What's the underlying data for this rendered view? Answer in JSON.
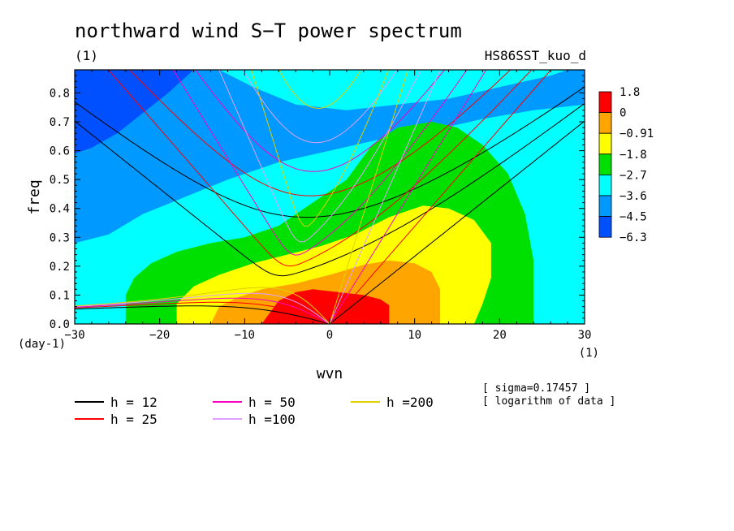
{
  "chart_data": {
    "type": "heatmap",
    "title": "northward wind S−T power spectrum",
    "subtitle_left": "(1)",
    "dataset_label": "HS86SST_kuo_d",
    "xlabel": "wvn",
    "ylabel": "freq",
    "x_unit": "(1)",
    "y_unit": "(day-1)",
    "xlim": [
      -30,
      30
    ],
    "ylim": [
      0,
      0.88
    ],
    "x_ticks": [
      -30,
      -20,
      -10,
      0,
      10,
      20,
      30
    ],
    "x_tick_labels": [
      "−30",
      "−20",
      "−10",
      "0",
      "10",
      "20",
      "30"
    ],
    "y_ticks": [
      0.0,
      0.1,
      0.2,
      0.3,
      0.4,
      0.5,
      0.6,
      0.7,
      0.8
    ],
    "y_tick_labels": [
      "0.0",
      "0.1",
      "0.2",
      "0.3",
      "0.4",
      "0.5",
      "0.6",
      "0.7",
      "0.8"
    ],
    "colorbar": {
      "labels": [
        "1.8",
        "0",
        "−0.91",
        "−1.8",
        "−2.7",
        "−3.6",
        "−4.5",
        "−6.3"
      ],
      "colors": [
        "#ff0000",
        "#ffa500",
        "#ffff00",
        "#00e000",
        "#00ffff",
        "#0099ff",
        "#0050ff"
      ]
    },
    "contour_regions": [
      {
        "level_color": "#00ffff",
        "points": [
          [
            -30,
            0.28
          ],
          [
            -26,
            0.31
          ],
          [
            -22,
            0.38
          ],
          [
            -17,
            0.44
          ],
          [
            -12,
            0.5
          ],
          [
            -6,
            0.56
          ],
          [
            0,
            0.6
          ],
          [
            6,
            0.64
          ],
          [
            12,
            0.67
          ],
          [
            18,
            0.71
          ],
          [
            24,
            0.74
          ],
          [
            30,
            0.76
          ],
          [
            30,
            0
          ],
          [
            -30,
            0
          ]
        ]
      },
      {
        "level_color": "#00e000",
        "points": [
          [
            -24,
            0
          ],
          [
            -24,
            0.1
          ],
          [
            -23,
            0.16
          ],
          [
            -21,
            0.21
          ],
          [
            -18,
            0.25
          ],
          [
            -14,
            0.28
          ],
          [
            -10,
            0.3
          ],
          [
            -6,
            0.34
          ],
          [
            -2,
            0.42
          ],
          [
            2,
            0.5
          ],
          [
            5,
            0.62
          ],
          [
            8,
            0.68
          ],
          [
            12,
            0.7
          ],
          [
            15,
            0.68
          ],
          [
            18,
            0.62
          ],
          [
            21,
            0.52
          ],
          [
            23,
            0.38
          ],
          [
            24,
            0.22
          ],
          [
            24,
            0.08
          ],
          [
            24,
            0
          ]
        ]
      },
      {
        "level_color": "#ffff00",
        "points": [
          [
            -18,
            0
          ],
          [
            -18,
            0.07
          ],
          [
            -16,
            0.13
          ],
          [
            -13,
            0.17
          ],
          [
            -9,
            0.21
          ],
          [
            -5,
            0.24
          ],
          [
            -1,
            0.27
          ],
          [
            3,
            0.31
          ],
          [
            7,
            0.37
          ],
          [
            11,
            0.41
          ],
          [
            14,
            0.4
          ],
          [
            17,
            0.36
          ],
          [
            19,
            0.28
          ],
          [
            19,
            0.16
          ],
          [
            18,
            0.07
          ],
          [
            17,
            0
          ]
        ]
      },
      {
        "level_color": "#ffa500",
        "points": [
          [
            -14,
            0
          ],
          [
            -13,
            0.06
          ],
          [
            -11,
            0.09
          ],
          [
            -8,
            0.12
          ],
          [
            -4,
            0.14
          ],
          [
            0,
            0.17
          ],
          [
            4,
            0.205
          ],
          [
            7,
            0.22
          ],
          [
            10,
            0.21
          ],
          [
            12,
            0.18
          ],
          [
            13,
            0.12
          ],
          [
            13,
            0.05
          ],
          [
            13,
            0
          ]
        ]
      },
      {
        "level_color": "#ff0000",
        "points": [
          [
            -8,
            0
          ],
          [
            -7,
            0.04
          ],
          [
            -6,
            0.08
          ],
          [
            -4,
            0.11
          ],
          [
            -2,
            0.12
          ],
          [
            1,
            0.11
          ],
          [
            4,
            0.1
          ],
          [
            6,
            0.085
          ],
          [
            7,
            0.065
          ],
          [
            7,
            0.03
          ],
          [
            7,
            0
          ]
        ]
      }
    ],
    "background_bands": [
      {
        "level_color": "#0099ff",
        "points": [
          [
            -30,
            0.88
          ],
          [
            30,
            0.88
          ],
          [
            30,
            0.76
          ],
          [
            24,
            0.74
          ],
          [
            18,
            0.71
          ],
          [
            12,
            0.67
          ],
          [
            6,
            0.64
          ],
          [
            0,
            0.6
          ],
          [
            -6,
            0.56
          ],
          [
            -12,
            0.5
          ],
          [
            -17,
            0.44
          ],
          [
            -22,
            0.38
          ],
          [
            -26,
            0.31
          ],
          [
            -30,
            0.28
          ]
        ]
      },
      {
        "level_color": "#00ffff",
        "points": [
          [
            -13,
            0.88
          ],
          [
            -9,
            0.82
          ],
          [
            -4,
            0.76
          ],
          [
            2,
            0.74
          ],
          [
            8,
            0.76
          ],
          [
            14,
            0.78
          ],
          [
            20,
            0.82
          ],
          [
            26,
            0.86
          ],
          [
            28,
            0.88
          ]
        ]
      },
      {
        "level_color": "#0050ff",
        "points": [
          [
            -30,
            0.88
          ],
          [
            -16,
            0.88
          ],
          [
            -19,
            0.8
          ],
          [
            -22,
            0.73
          ],
          [
            -25,
            0.66
          ],
          [
            -28,
            0.61
          ],
          [
            -30,
            0.59
          ]
        ]
      }
    ],
    "dispersion_series": [
      {
        "name": "h = 12",
        "color": "#000000"
      },
      {
        "name": "h = 25",
        "color": "#ff0000"
      },
      {
        "name": "h = 50",
        "color": "#ff00c0"
      },
      {
        "name": "h =100",
        "color": "#e0a0ff"
      },
      {
        "name": "h =200",
        "color": "#e0d000"
      }
    ],
    "notes": [
      "[ sigma=0.17457 ]",
      "[ logarithm of data ]"
    ]
  }
}
